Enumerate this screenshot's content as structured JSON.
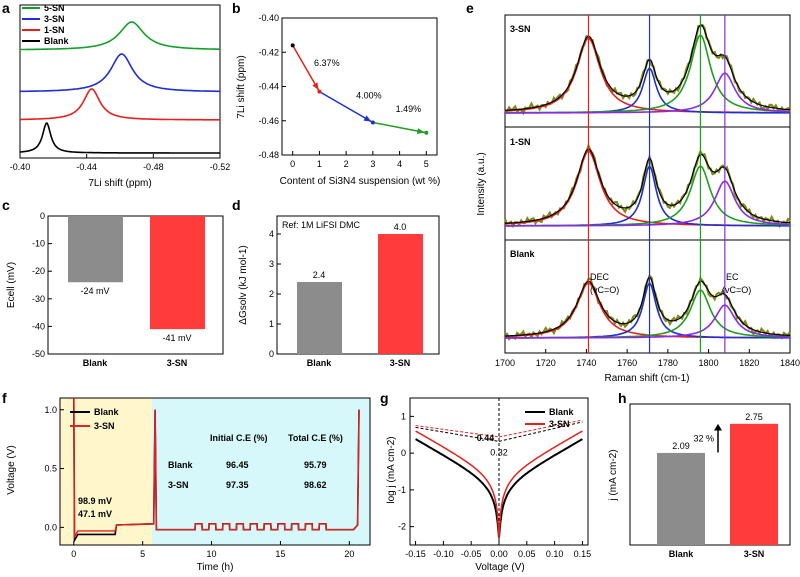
{
  "colors": {
    "blank": "#000000",
    "sn1": "#e8201c",
    "sn3": "#1f2fd0",
    "sn5": "#11a12a",
    "grey": "#8c8c8c",
    "red": "#ff3b3b",
    "yellow": "#fff6cc",
    "cyan": "#d6f8fb",
    "olive": "#808a1d",
    "purple": "#8a2be2",
    "green": "#1f9e1f"
  },
  "chart_data": [
    {
      "panel": "a",
      "type": "line",
      "xlabel": "7Li shift (ppm)",
      "xticks": [
        "-0.40",
        "-0.44",
        "-0.48",
        "-0.52"
      ],
      "xlim": [
        -0.4,
        -0.52
      ],
      "legend": [
        "5-SN",
        "3-SN",
        "1-SN",
        "Blank"
      ],
      "series": [
        {
          "name": "5-SN",
          "peak": -0.467
        },
        {
          "name": "3-SN",
          "peak": -0.461
        },
        {
          "name": "1-SN",
          "peak": -0.443
        },
        {
          "name": "Blank",
          "peak": -0.416
        }
      ]
    },
    {
      "panel": "b",
      "type": "line",
      "title": "",
      "xlabel": "Content of Si3N4 suspension (wt %)",
      "ylabel": "7Li shift (ppm)",
      "xticks": [
        "0",
        "1",
        "2",
        "3",
        "4",
        "5"
      ],
      "yticks": [
        "-0.40",
        "-0.42",
        "-0.44",
        "-0.46",
        "-0.48"
      ],
      "xlim": [
        -0.4,
        5.4
      ],
      "ylim": [
        -0.48,
        -0.4
      ],
      "x": [
        0,
        1,
        3,
        5
      ],
      "y": [
        -0.416,
        -0.443,
        -0.461,
        -0.467
      ],
      "labels": [
        "6.37%",
        "4.00%",
        "1.49%"
      ]
    },
    {
      "panel": "c",
      "type": "bar",
      "categories": [
        "Blank",
        "3-SN"
      ],
      "values": [
        -24,
        -41
      ],
      "ylabel": "Ecell (mV)",
      "ylim": [
        -50,
        0
      ],
      "yticks": [
        "0",
        "-10",
        "-20",
        "-30",
        "-40",
        "-50"
      ],
      "data_labels": [
        "-24 mV",
        "-41 mV"
      ]
    },
    {
      "panel": "d",
      "type": "bar",
      "categories": [
        "Blank",
        "3-SN"
      ],
      "values": [
        2.4,
        4.0
      ],
      "ylabel": "ΔGsolv (kJ mol-1)",
      "ylim": [
        0,
        4.5
      ],
      "yticks": [
        "0",
        "1",
        "2",
        "3",
        "4"
      ],
      "data_labels": [
        "2.4",
        "4.0"
      ],
      "note": "Ref: 1M LiFSI DMC"
    },
    {
      "panel": "e",
      "type": "line",
      "xlabel": "Raman shift (cm-1)",
      "ylabel": "Intensity (a.u.)",
      "xlim": [
        1700,
        1840
      ],
      "xticks": [
        "1700",
        "1720",
        "1740",
        "1760",
        "1780",
        "1800",
        "1820",
        "1840"
      ],
      "subpanels": [
        "3-SN",
        "1-SN",
        "Blank"
      ],
      "peaks": [
        1741,
        1771,
        1796,
        1808
      ],
      "annotations": [
        "DEC",
        "(vC=O)",
        "EC",
        "(vC=O)"
      ]
    },
    {
      "panel": "f",
      "type": "line",
      "xlabel": "Time (h)",
      "ylabel": "Voltage (V)",
      "xlim": [
        -1,
        21.5
      ],
      "ylim": [
        -0.15,
        1.1
      ],
      "xticks": [
        "0",
        "5",
        "10",
        "15",
        "20"
      ],
      "yticks": [
        "0.0",
        "0.5",
        "1.0"
      ],
      "legend": [
        "Blank",
        "3-SN"
      ],
      "table": {
        "headers": [
          "Initial C.E (%)",
          "Total C.E (%)"
        ],
        "rows": [
          {
            "name": "Blank",
            "v1": "96.45",
            "v2": "95.79"
          },
          {
            "name": "3-SN",
            "v1": "97.35",
            "v2": "98.62"
          }
        ]
      },
      "overpotential": [
        "98.9 mV",
        "47.1 mV"
      ]
    },
    {
      "panel": "g",
      "type": "line",
      "xlabel": "Voltage (V)",
      "ylabel": "log j (mA cm-2)",
      "xlim": [
        -0.16,
        0.16
      ],
      "ylim": [
        -2.5,
        1.5
      ],
      "xticks": [
        "-0.15",
        "-0.10",
        "-0.05",
        "0.00",
        "0.05",
        "0.10",
        "0.15"
      ],
      "yticks": [
        "1",
        "0",
        "-1",
        "-2"
      ],
      "legend": [
        "Blank",
        "3-SN"
      ],
      "labels": [
        "0.44",
        "0.32"
      ]
    },
    {
      "panel": "h",
      "type": "bar",
      "categories": [
        "Blank",
        "3-SN"
      ],
      "values": [
        2.09,
        2.75
      ],
      "ylabel": "j (mA cm-2)",
      "ylim": [
        0,
        3.2
      ],
      "data_labels": [
        "2.09",
        "2.75"
      ],
      "increase": "32 %"
    }
  ],
  "text": {
    "pa": "a",
    "pb": "b",
    "pc": "c",
    "pd": "d",
    "pe": "e",
    "pf": "f",
    "pg": "g",
    "ph": "h",
    "a_xl": "7Li shift (ppm)",
    "b_xl": "Content of Si3N4 suspension (wt %)",
    "b_yl": "7Li shift (ppm)",
    "c_yl": "Ecell (mV)",
    "d_yl": "ΔGsolv (kJ mol-1)",
    "d_ref": "Ref: 1M LiFSI DMC",
    "e_xl": "Raman shift (cm-1)",
    "e_yl": "Intensity (a.u.)",
    "e_s1": "3-SN",
    "e_s2": "1-SN",
    "e_s3": "Blank",
    "e_dec": "DEC",
    "e_dec2": "(vC=O)",
    "e_ec": "EC",
    "e_ec2": "(vC=O)",
    "f_xl": "Time (h)",
    "f_yl": "Voltage (V)",
    "g_xl": "Voltage (V)",
    "g_yl": "log j (mA cm-2)",
    "h_yl": "j (mA cm-2)"
  }
}
